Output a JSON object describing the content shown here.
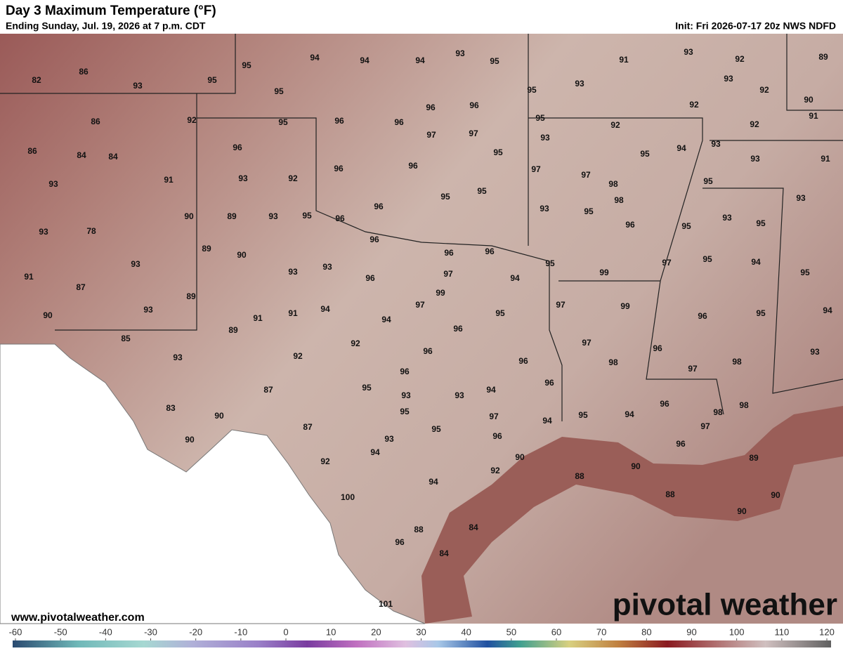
{
  "header": {
    "title": "Day 3 Maximum Temperature (°F)",
    "subtitle": "Ending Sunday, Jul. 19, 2026 at 7 p.m. CDT",
    "init": "Init: Fri 2026-07-17 20z NWS NDFD"
  },
  "map": {
    "labels": [
      94,
      94,
      94,
      93,
      95,
      95,
      95,
      86,
      82,
      93,
      95,
      91,
      93,
      92,
      89,
      93,
      95,
      93,
      92,
      90,
      92,
      91,
      96,
      96,
      96,
      96,
      95,
      92,
      92,
      95,
      92,
      86,
      97,
      97,
      93,
      94,
      93,
      95,
      93,
      91,
      86,
      84,
      84,
      96,
      95,
      96,
      96,
      97,
      97,
      98,
      95,
      93,
      92,
      91,
      93,
      95,
      95,
      98,
      93,
      96,
      93,
      95,
      90,
      89,
      93,
      95,
      96,
      93,
      95,
      96,
      95,
      93,
      78,
      96,
      89,
      90,
      96,
      96,
      95,
      97,
      95,
      94,
      93,
      93,
      93,
      96,
      97,
      99,
      94,
      95,
      91,
      87,
      99,
      89,
      97,
      97,
      99,
      94,
      93,
      94,
      95,
      96,
      95,
      90,
      91,
      91,
      94,
      96,
      89,
      85,
      92,
      97,
      96,
      96,
      93,
      93,
      92,
      98,
      96,
      98,
      97,
      96,
      96,
      87,
      95,
      94,
      93,
      93,
      96,
      98,
      98,
      83,
      95,
      97,
      95,
      94,
      94,
      90,
      97,
      87,
      95,
      96,
      93,
      96,
      90,
      94,
      90,
      89,
      92,
      92,
      88,
      90,
      94,
      88,
      90,
      100,
      90,
      84,
      96,
      88,
      84,
      101
    ]
  },
  "footer": {
    "url": "www.pivotalweather.com",
    "logo": "pivotal weather"
  },
  "colorbar": {
    "ticks": [
      -60,
      -50,
      -40,
      -30,
      -20,
      -10,
      0,
      10,
      20,
      30,
      40,
      50,
      60,
      70,
      80,
      90,
      100,
      110,
      120
    ]
  }
}
